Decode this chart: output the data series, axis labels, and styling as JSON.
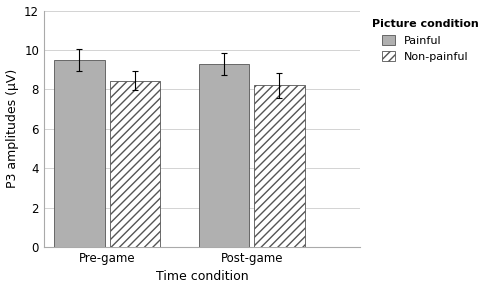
{
  "groups": [
    "Pre-game",
    "Post-game"
  ],
  "conditions": [
    "Painful",
    "Non-painful"
  ],
  "values": {
    "Pre-game": {
      "Painful": 9.5,
      "Non-painful": 8.45
    },
    "Post-game": {
      "Painful": 9.3,
      "Non-painful": 8.2
    }
  },
  "errors": {
    "Pre-game": {
      "Painful": 0.55,
      "Non-painful": 0.48
    },
    "Post-game": {
      "Painful": 0.55,
      "Non-painful": 0.62
    }
  },
  "painful_color": "#b0b0b0",
  "nonpainful_color": "#ffffff",
  "xlabel": "Time condition",
  "ylabel": "P3 amplitudes (μV)",
  "ylim": [
    0,
    12
  ],
  "yticks": [
    0,
    2,
    4,
    6,
    8,
    10,
    12
  ],
  "legend_title": "Picture condition",
  "legend_labels": [
    "Painful",
    "Non-painful"
  ],
  "bar_width": 0.28,
  "axis_fontsize": 9,
  "tick_fontsize": 8.5,
  "legend_fontsize": 8
}
